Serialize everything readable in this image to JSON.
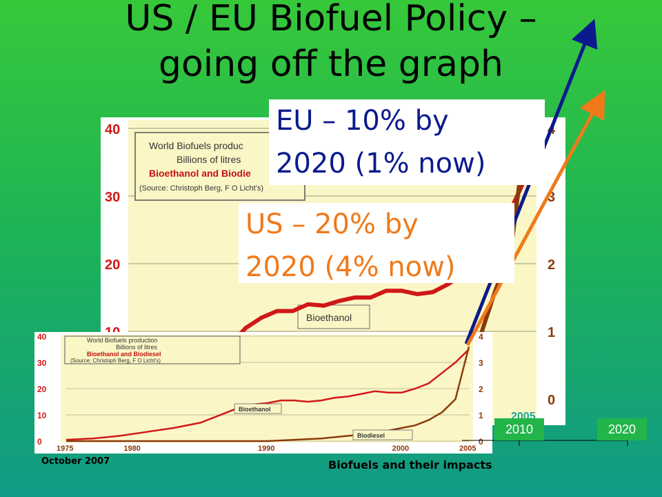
{
  "slide": {
    "title_line1": "US / EU Biofuel Policy –",
    "title_line2": "going off the graph",
    "footer_date": "October 2007",
    "footer_title": "Biofuels and their impacts"
  },
  "callouts": {
    "eu_line1": "EU – 10% by",
    "eu_line2": "2020 (1% now)",
    "us_line1": "US – 20% by",
    "us_line2": "2020 (4% now)"
  },
  "year_labels": [
    "2010",
    "2020"
  ],
  "colors": {
    "bioethanol": "#d01818",
    "biodiesel": "#8b3a0a",
    "eu_arrow": "#0b1a8c",
    "us_arrow": "#f07a1a",
    "chart_bg": "#fbf6c6"
  },
  "chart_data": [
    {
      "type": "line",
      "chart_id": "big",
      "legend_lines": [
        "World Biofuels produc",
        "Billions of litres",
        "Bioethanol and Biodie",
        "(Source: Christoph Berg, F O Licht's)"
      ],
      "left_axis_ticks": [
        "40",
        "30",
        "20",
        "10"
      ],
      "right_axis_ticks": [
        "4",
        "3",
        "2",
        "1",
        "0"
      ],
      "x_tick": "2005",
      "series_label": "Bioethanol",
      "bioethanol_points": [
        [
          1986,
          8
        ],
        [
          1987,
          10.5
        ],
        [
          1988,
          12
        ],
        [
          1989,
          13
        ],
        [
          1990,
          13
        ],
        [
          1991,
          14
        ],
        [
          1992,
          13.8
        ],
        [
          1993,
          14.5
        ],
        [
          1994,
          15
        ],
        [
          1995,
          15
        ],
        [
          1996,
          16
        ],
        [
          1997,
          16
        ],
        [
          1998,
          15.5
        ],
        [
          1999,
          15.8
        ],
        [
          2000,
          17
        ],
        [
          2001,
          18.5
        ],
        [
          2002,
          20
        ],
        [
          2003,
          23
        ],
        [
          2004,
          28
        ],
        [
          2005,
          33
        ]
      ]
    },
    {
      "type": "line",
      "chart_id": "small",
      "legend_lines": [
        "World Biofuels production",
        "Billions of litres",
        "Bioethanol and Biodiesel",
        "(Source: Christoph Berg, F O Licht's)"
      ],
      "left_axis_ticks": [
        "40",
        "30",
        "20",
        "10",
        "0"
      ],
      "right_axis_ticks": [
        "4",
        "3",
        "2",
        "1",
        "0"
      ],
      "x_ticks": [
        "1975",
        "1980",
        "1990",
        "2000",
        "2005"
      ],
      "xlim": [
        1975,
        2005
      ],
      "ylim_left": [
        0,
        40
      ],
      "ylim_right": [
        0,
        4
      ],
      "series": [
        {
          "name": "Bioethanol",
          "axis": "left",
          "x": [
            1975,
            1977,
            1979,
            1981,
            1983,
            1985,
            1986,
            1987,
            1988,
            1989,
            1990,
            1991,
            1992,
            1993,
            1994,
            1995,
            1996,
            1997,
            1998,
            1999,
            2000,
            2001,
            2002,
            2003,
            2004,
            2005
          ],
          "y": [
            0.5,
            1,
            2,
            3.5,
            5,
            7,
            9,
            11,
            13,
            14,
            14.5,
            15.5,
            15.5,
            15,
            15.5,
            16.5,
            17,
            18,
            19,
            18.5,
            18.5,
            20,
            22,
            26,
            30,
            35
          ]
        },
        {
          "name": "Biodiesel",
          "axis": "right",
          "x": [
            1975,
            1990,
            1992,
            1994,
            1996,
            1998,
            2000,
            2001,
            2002,
            2003,
            2004,
            2005
          ],
          "y": [
            0,
            0,
            0.05,
            0.1,
            0.2,
            0.3,
            0.5,
            0.6,
            0.8,
            1.1,
            1.6,
            3.6
          ]
        }
      ]
    }
  ]
}
